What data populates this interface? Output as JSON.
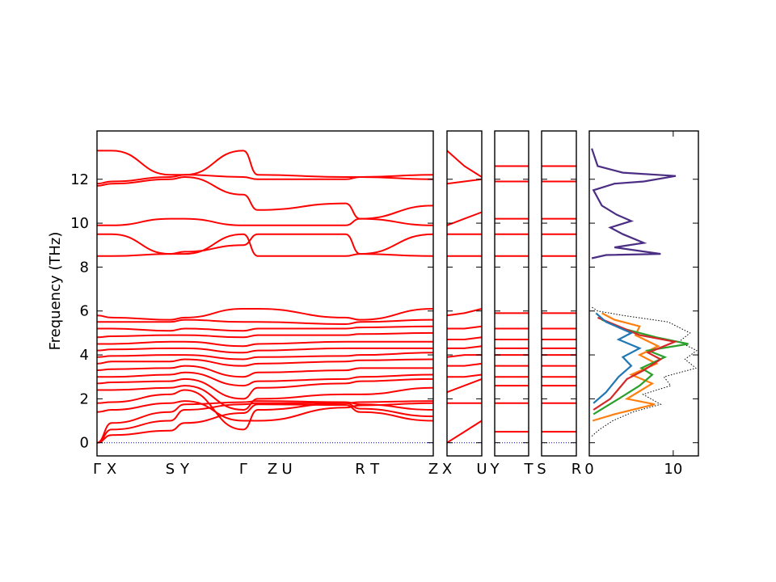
{
  "chart_data": {
    "type": "line",
    "title": "",
    "ylabel": "Frequency (THz)",
    "ylim": [
      -0.6,
      14.2
    ],
    "yticks": [
      0,
      2,
      4,
      6,
      8,
      10,
      12
    ],
    "grid": false,
    "colors": {
      "band": "#ff0000",
      "zero_line": "#0000cc",
      "dos_total": "#000000",
      "dos_high": "#4b2e83"
    },
    "segments": [
      {
        "x": [
          0,
          0.5,
          2.5,
          3.0,
          5.0,
          5.5,
          8.5,
          9.0,
          11.5
        ],
        "tick_labels": [
          "Γ",
          "X",
          "S",
          "Y",
          "Γ",
          "Z",
          "U",
          "R",
          "T"
        ],
        "tick_positions": [
          0,
          0.5,
          2.5,
          3.0,
          5.0,
          6.0,
          6.5,
          9.0,
          9.5
        ],
        "end_label": "Z",
        "xlim": [
          0,
          11.5
        ]
      },
      {
        "tick_labels": [
          "X"
        ],
        "end_label": "U",
        "xlim": [
          0,
          1
        ]
      },
      {
        "tick_labels": [
          "Y"
        ],
        "end_label": "T",
        "xlim": [
          0,
          1
        ]
      },
      {
        "tick_labels": [
          "S"
        ],
        "end_label": "R",
        "xlim": [
          0,
          1
        ]
      }
    ],
    "bands_main": [
      [
        0,
        0.35,
        0.55,
        0.9,
        1.35,
        1.75,
        1.72,
        1.4,
        1.0
      ],
      [
        0,
        0.6,
        1.0,
        1.5,
        1.75,
        1.8,
        1.8,
        1.55,
        1.2
      ],
      [
        0,
        0.9,
        1.4,
        1.75,
        1.85,
        1.9,
        1.85,
        1.75,
        1.5
      ],
      [
        1.4,
        1.5,
        1.8,
        1.9,
        1.0,
        1.0,
        1.6,
        1.7,
        1.8
      ],
      [
        1.8,
        1.85,
        2.2,
        2.4,
        0.6,
        1.5,
        1.8,
        1.85,
        1.9
      ],
      [
        2.4,
        2.4,
        2.5,
        2.6,
        1.5,
        2.0,
        2.2,
        2.2,
        2.5
      ],
      [
        2.7,
        2.75,
        2.8,
        2.9,
        2.0,
        2.5,
        2.7,
        2.8,
        2.9
      ],
      [
        3.0,
        3.0,
        3.1,
        3.2,
        2.6,
        2.8,
        2.9,
        3.0,
        3.1
      ],
      [
        3.3,
        3.35,
        3.4,
        3.5,
        3.0,
        3.2,
        3.3,
        3.4,
        3.4
      ],
      [
        3.6,
        3.7,
        3.7,
        3.8,
        3.5,
        3.6,
        3.7,
        3.75,
        3.8
      ],
      [
        3.9,
        3.95,
        4.0,
        4.0,
        3.8,
        3.9,
        3.95,
        4.0,
        4.1
      ],
      [
        4.2,
        4.25,
        4.3,
        4.3,
        4.1,
        4.2,
        4.3,
        4.3,
        4.3
      ],
      [
        4.5,
        4.5,
        4.6,
        4.6,
        4.4,
        4.5,
        4.6,
        4.6,
        4.6
      ],
      [
        4.8,
        4.85,
        4.9,
        4.9,
        4.8,
        4.9,
        4.9,
        4.95,
        5.0
      ],
      [
        5.2,
        5.2,
        5.1,
        5.2,
        5.1,
        5.2,
        5.2,
        5.25,
        5.3
      ],
      [
        5.5,
        5.5,
        5.5,
        5.6,
        5.5,
        5.5,
        5.4,
        5.5,
        5.6
      ],
      [
        5.8,
        5.7,
        5.6,
        5.7,
        6.1,
        6.1,
        5.7,
        5.6,
        6.1
      ],
      [
        8.5,
        8.5,
        8.6,
        8.6,
        9.5,
        8.5,
        8.5,
        8.6,
        8.5
      ],
      [
        9.5,
        9.5,
        8.6,
        8.7,
        9.0,
        9.5,
        9.5,
        8.6,
        9.5
      ],
      [
        9.9,
        9.9,
        10.2,
        10.2,
        9.9,
        9.9,
        9.9,
        10.2,
        9.9
      ],
      [
        11.7,
        11.8,
        12.0,
        12.1,
        11.3,
        10.6,
        10.9,
        10.2,
        10.8
      ],
      [
        11.8,
        11.9,
        12.1,
        12.2,
        12.1,
        12.0,
        12.0,
        12.1,
        12.0
      ],
      [
        13.3,
        13.3,
        12.2,
        12.2,
        13.3,
        12.2,
        12.1,
        12.1,
        12.2
      ]
    ],
    "bands_segment": [
      [
        0.0,
        0.5,
        1.0
      ],
      [
        1.8,
        1.8,
        1.8
      ],
      [
        2.3,
        2.6,
        2.9
      ],
      [
        3.0,
        3.0,
        3.1
      ],
      [
        3.5,
        3.5,
        3.6
      ],
      [
        3.9,
        4.0,
        4.0
      ],
      [
        4.3,
        4.3,
        4.4
      ],
      [
        4.7,
        4.7,
        4.8
      ],
      [
        5.2,
        5.2,
        5.3
      ],
      [
        5.8,
        5.9,
        6.1
      ],
      [
        8.5,
        8.5,
        8.5
      ],
      [
        9.5,
        9.5,
        9.5
      ],
      [
        9.9,
        10.2,
        10.5
      ],
      [
        11.8,
        11.9,
        12.0
      ],
      [
        13.3,
        12.6,
        12.1
      ]
    ],
    "dos_panel": {
      "xlim": [
        0,
        13
      ],
      "xticks": [
        0,
        10
      ],
      "series": [
        {
          "color": "#000000",
          "style": "dotted",
          "points": [
            [
              0.3,
              0.3
            ],
            [
              1.2,
              0.6
            ],
            [
              2.8,
              1.0
            ],
            [
              5.2,
              1.4
            ],
            [
              8.5,
              1.75
            ],
            [
              6.4,
              2.2
            ],
            [
              9.7,
              2.6
            ],
            [
              8.9,
              3.0
            ],
            [
              12.7,
              3.4
            ],
            [
              11.4,
              3.8
            ],
            [
              12.8,
              4.2
            ],
            [
              10.7,
              4.6
            ],
            [
              12.0,
              5.0
            ],
            [
              9.4,
              5.5
            ],
            [
              4.0,
              5.8
            ],
            [
              1.0,
              6.0
            ],
            [
              0.2,
              6.2
            ]
          ]
        },
        {
          "color": "#ff7f0e",
          "style": "solid",
          "points": [
            [
              0.4,
              1.0
            ],
            [
              3.0,
              1.3
            ],
            [
              7.8,
              1.75
            ],
            [
              4.5,
              2.0
            ],
            [
              7.5,
              2.7
            ],
            [
              5.0,
              3.1
            ],
            [
              8.0,
              3.6
            ],
            [
              6.0,
              4.0
            ],
            [
              8.2,
              4.4
            ],
            [
              5.5,
              4.9
            ],
            [
              6.0,
              5.3
            ],
            [
              3.0,
              5.6
            ],
            [
              1.5,
              5.9
            ]
          ]
        },
        {
          "color": "#2ca02c",
          "style": "solid",
          "points": [
            [
              0.5,
              1.3
            ],
            [
              3.5,
              2.0
            ],
            [
              6.0,
              2.6
            ],
            [
              7.5,
              3.1
            ],
            [
              6.2,
              3.4
            ],
            [
              9.0,
              3.9
            ],
            [
              7.0,
              4.2
            ],
            [
              11.8,
              4.5
            ],
            [
              8.0,
              4.8
            ],
            [
              4.0,
              5.2
            ],
            [
              1.5,
              5.6
            ]
          ]
        },
        {
          "color": "#d62728",
          "style": "solid",
          "points": [
            [
              0.5,
              1.5
            ],
            [
              2.5,
              2.0
            ],
            [
              4.5,
              2.9
            ],
            [
              6.5,
              3.3
            ],
            [
              8.5,
              3.8
            ],
            [
              7.0,
              4.1
            ],
            [
              10.2,
              4.6
            ],
            [
              6.0,
              4.9
            ],
            [
              3.5,
              5.3
            ],
            [
              1.0,
              5.7
            ]
          ]
        },
        {
          "color": "#1f77b4",
          "style": "solid",
          "points": [
            [
              0.5,
              1.8
            ],
            [
              2.0,
              2.3
            ],
            [
              3.5,
              3.0
            ],
            [
              5.0,
              3.5
            ],
            [
              4.0,
              3.9
            ],
            [
              6.0,
              4.3
            ],
            [
              3.5,
              4.7
            ],
            [
              5.0,
              5.0
            ],
            [
              2.0,
              5.5
            ],
            [
              0.8,
              5.9
            ]
          ]
        },
        {
          "color": "#4b2e83",
          "style": "solid",
          "points": [
            [
              0.3,
              8.4
            ],
            [
              2.0,
              8.55
            ],
            [
              8.5,
              8.6
            ],
            [
              3.0,
              8.9
            ],
            [
              6.5,
              9.1
            ],
            [
              4.0,
              9.5
            ],
            [
              2.5,
              9.8
            ],
            [
              5.0,
              10.1
            ],
            [
              3.2,
              10.4
            ],
            [
              1.5,
              10.8
            ],
            [
              0.5,
              11.5
            ],
            [
              3.0,
              11.8
            ],
            [
              6.5,
              11.9
            ],
            [
              10.3,
              12.15
            ],
            [
              4.0,
              12.3
            ],
            [
              1.0,
              12.6
            ],
            [
              0.3,
              13.4
            ]
          ]
        }
      ]
    }
  }
}
